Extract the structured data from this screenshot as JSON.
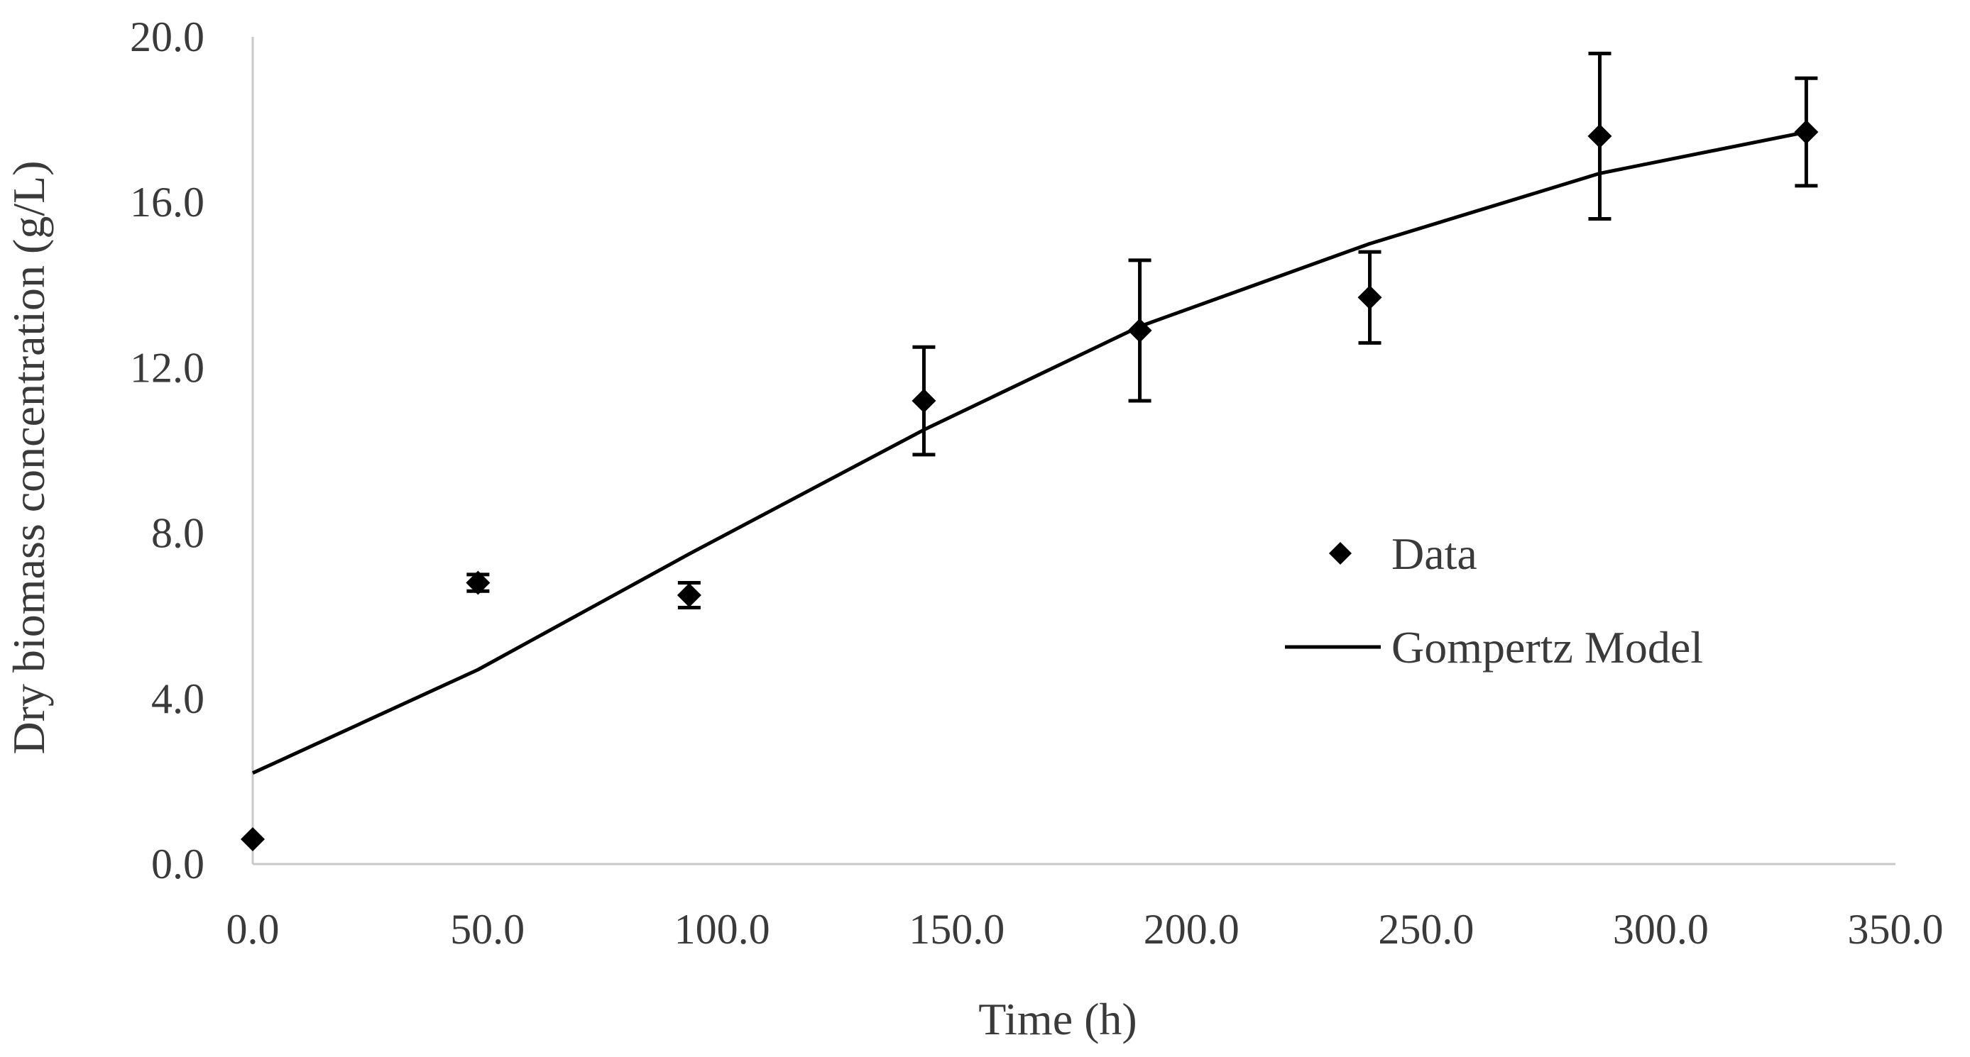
{
  "chart_data": {
    "type": "scatter",
    "title": "",
    "xlabel": "Time (h)",
    "ylabel": "Dry biomass concentration (g/L)",
    "xlim": [
      0,
      350
    ],
    "ylim": [
      0,
      20
    ],
    "x_ticks": [
      0,
      50,
      100,
      150,
      200,
      250,
      300,
      350
    ],
    "y_ticks": [
      0,
      4,
      8,
      12,
      16,
      20
    ],
    "x_tick_labels": [
      "0.0",
      "50.0",
      "100.0",
      "150.0",
      "200.0",
      "250.0",
      "300.0",
      "350.0"
    ],
    "y_tick_labels": [
      "0.0",
      "4.0",
      "8.0",
      "12.0",
      "16.0",
      "20.0"
    ],
    "grid": false,
    "legend_position": "right-middle",
    "series": [
      {
        "name": "Data",
        "kind": "scatter-errorbar",
        "marker": "diamond",
        "color": "#000000",
        "x": [
          0,
          48,
          93,
          143,
          189,
          238,
          287,
          331
        ],
        "y": [
          0.6,
          6.8,
          6.5,
          11.2,
          12.9,
          13.7,
          17.6,
          17.7
        ],
        "error": [
          0.0,
          0.2,
          0.3,
          1.3,
          1.7,
          1.1,
          2.0,
          1.3
        ]
      },
      {
        "name": "Gompertz Model",
        "kind": "line",
        "color": "#000000",
        "x": [
          0,
          48,
          93,
          143,
          189,
          238,
          287,
          331
        ],
        "y": [
          2.2,
          4.7,
          7.5,
          10.5,
          13.0,
          15.0,
          16.7,
          17.7
        ]
      }
    ]
  }
}
